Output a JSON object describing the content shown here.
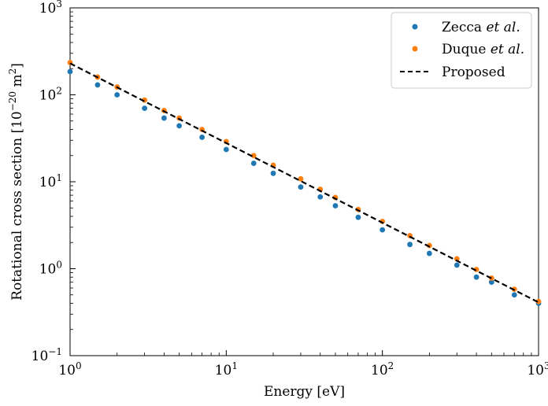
{
  "chart_data": {
    "type": "scatter",
    "xlabel": "Energy [eV]",
    "ylabel": "Rotational cross section [10",
    "ylabel_exponent": "−20",
    "ylabel_suffix": " m",
    "ylabel_suffix_exponent": "2",
    "ylabel_end": "]",
    "xscale": "log",
    "yscale": "log",
    "xlim": [
      1,
      1000
    ],
    "ylim": [
      0.1,
      1000
    ],
    "grid": false,
    "legend_position": "top-right",
    "x_ticks": [
      {
        "value": 1,
        "base": "10",
        "exp": "0"
      },
      {
        "value": 10,
        "base": "10",
        "exp": "1"
      },
      {
        "value": 100,
        "base": "10",
        "exp": "2"
      },
      {
        "value": 1000,
        "base": "10",
        "exp": "3"
      }
    ],
    "y_ticks": [
      {
        "value": 0.1,
        "base": "10",
        "exp": "−1"
      },
      {
        "value": 1,
        "base": "10",
        "exp": "0"
      },
      {
        "value": 10,
        "base": "10",
        "exp": "1"
      },
      {
        "value": 100,
        "base": "10",
        "exp": "2"
      },
      {
        "value": 1000,
        "base": "10",
        "exp": "3"
      }
    ],
    "series": [
      {
        "name": "Zecca et al.",
        "name_plain": "Zecca ",
        "name_italic": "et al.",
        "kind": "markers",
        "color": "#1f77b4",
        "points": [
          [
            1,
            185
          ],
          [
            1.5,
            130
          ],
          [
            2,
            100
          ],
          [
            3,
            70
          ],
          [
            4,
            54
          ],
          [
            5,
            44
          ],
          [
            7,
            32.5
          ],
          [
            10,
            23.5
          ],
          [
            15,
            16.3
          ],
          [
            20,
            12.5
          ],
          [
            30,
            8.7
          ],
          [
            40,
            6.7
          ],
          [
            50,
            5.3
          ],
          [
            70,
            3.9
          ],
          [
            100,
            2.8
          ],
          [
            150,
            1.9
          ],
          [
            200,
            1.5
          ],
          [
            300,
            1.1
          ],
          [
            400,
            0.8
          ],
          [
            500,
            0.7
          ],
          [
            700,
            0.5
          ],
          [
            1000,
            0.4
          ]
        ]
      },
      {
        "name": "Duque et al.",
        "name_plain": "Duque ",
        "name_italic": "et al.",
        "kind": "markers",
        "color": "#ff7f0e",
        "points": [
          [
            1,
            235
          ],
          [
            1.5,
            160
          ],
          [
            2,
            123
          ],
          [
            3,
            87
          ],
          [
            4,
            66
          ],
          [
            5,
            54
          ],
          [
            7,
            40
          ],
          [
            10,
            29
          ],
          [
            15,
            20
          ],
          [
            20,
            15.5
          ],
          [
            30,
            10.8
          ],
          [
            40,
            8.2
          ],
          [
            50,
            6.6
          ],
          [
            70,
            4.8
          ],
          [
            100,
            3.5
          ],
          [
            150,
            2.4
          ],
          [
            200,
            1.85
          ],
          [
            300,
            1.3
          ],
          [
            400,
            0.98
          ],
          [
            500,
            0.78
          ],
          [
            700,
            0.58
          ],
          [
            1000,
            0.42
          ]
        ]
      },
      {
        "name": "Proposed",
        "kind": "dashed-line",
        "color": "#000000",
        "points": [
          [
            1,
            230
          ],
          [
            1000,
            0.41
          ]
        ]
      }
    ]
  }
}
